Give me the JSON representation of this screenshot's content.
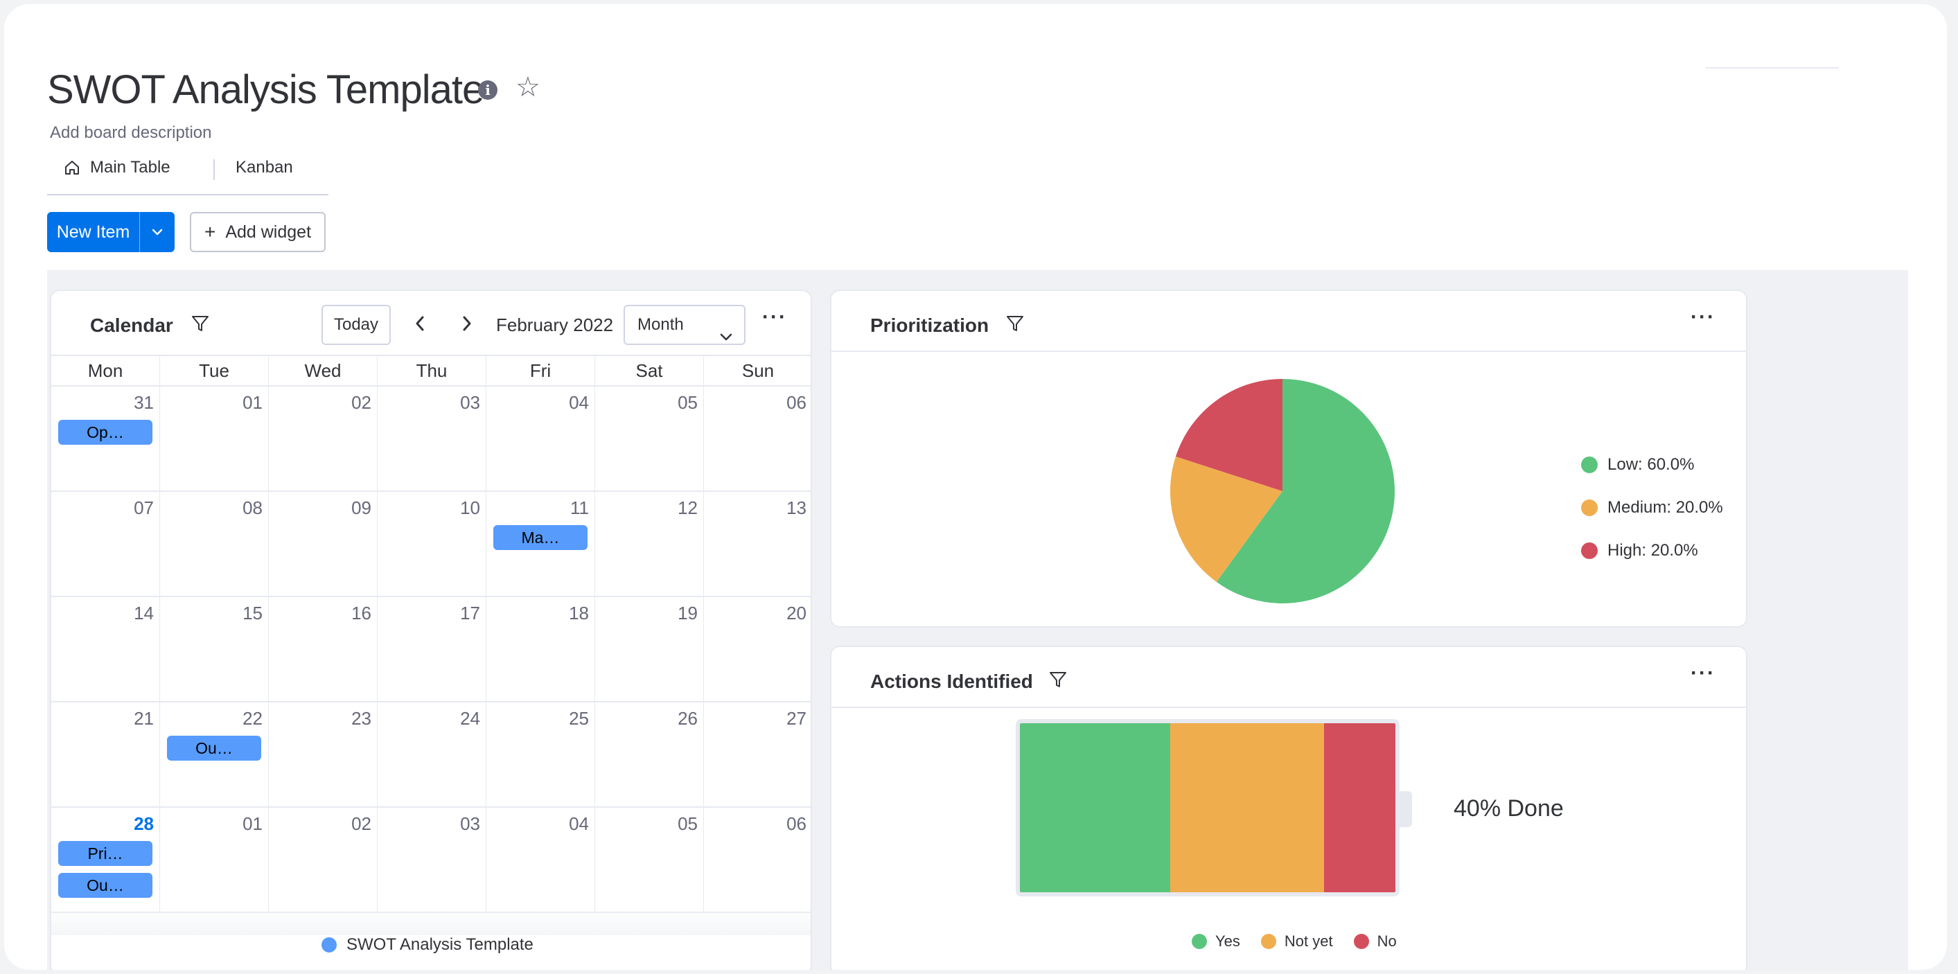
{
  "board": {
    "title": "SWOT Analysis Template",
    "description": "Add board description"
  },
  "views": {
    "main_table": "Main Table",
    "kanban": "Kanban"
  },
  "toolbar": {
    "new_item": "New Item",
    "add_widget": "Add widget"
  },
  "calendar": {
    "title": "Calendar",
    "today": "Today",
    "month_label": "February 2022",
    "view_mode": "Month",
    "weekdays": [
      "Mon",
      "Tue",
      "Wed",
      "Thu",
      "Fri",
      "Sat",
      "Sun"
    ],
    "weeks": [
      [
        "31",
        "01",
        "02",
        "03",
        "04",
        "05",
        "06"
      ],
      [
        "07",
        "08",
        "09",
        "10",
        "11",
        "12",
        "13"
      ],
      [
        "14",
        "15",
        "16",
        "17",
        "18",
        "19",
        "20"
      ],
      [
        "21",
        "22",
        "23",
        "24",
        "25",
        "26",
        "27"
      ],
      [
        "28",
        "01",
        "02",
        "03",
        "04",
        "05",
        "06"
      ]
    ],
    "events": {
      "w0_mon": "Op…",
      "w1_fri": "Ma…",
      "w3_tue": "Ou…",
      "w4_mon_1": "Pri…",
      "w4_mon_2": "Ou…"
    },
    "legend": "SWOT Analysis Template",
    "legend_color": "#579bfc"
  },
  "prioritization": {
    "title": "Prioritization",
    "chart_data": {
      "type": "pie",
      "categories": [
        "Low",
        "Medium",
        "High"
      ],
      "values": [
        60.0,
        20.0,
        20.0
      ],
      "colors": [
        "#5ac47d",
        "#f0ad4e",
        "#d34e5d"
      ]
    },
    "legend": [
      "Low: 60.0%",
      "Medium: 20.0%",
      "High: 20.0%"
    ]
  },
  "actions": {
    "title": "Actions Identified",
    "chart_data": {
      "type": "bar",
      "categories": [
        "Yes",
        "Not yet",
        "No"
      ],
      "values": [
        40,
        41,
        19
      ],
      "colors": [
        "#5ac47d",
        "#f0ad4e",
        "#d34e5d"
      ]
    },
    "done_label": "40% Done",
    "legend": [
      "Yes",
      "Not yet",
      "No"
    ]
  }
}
